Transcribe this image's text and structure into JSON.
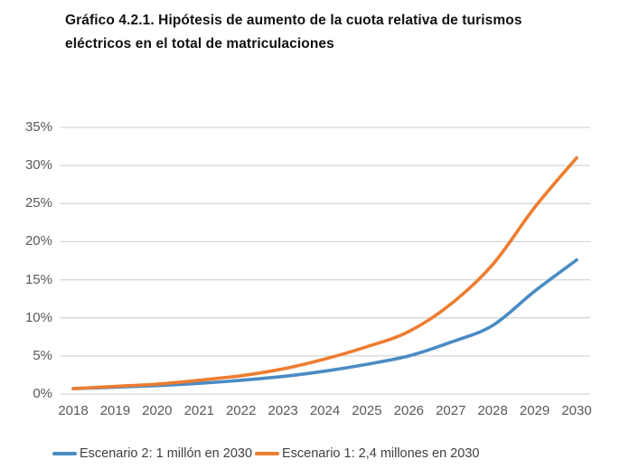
{
  "title": {
    "line1": "Gráfico 4.2.1. Hipótesis de aumento de la cuota relativa de turismos",
    "line2": "eléctricos en el total de matriculaciones"
  },
  "colors": {
    "grid": "#d6d6d6",
    "axis_text": "#595959",
    "legend_text": "#3f3f3f",
    "escenario2_blue": "#4a8bc4",
    "escenario1_orange": "#ed7d31",
    "background": "#ffffff"
  },
  "chart_data": {
    "type": "line",
    "title": "Gráfico 4.2.1. Hipótesis de aumento de la cuota relativa de turismos eléctricos en el total de matriculaciones",
    "x": [
      "2018",
      "2019",
      "2020",
      "2021",
      "2022",
      "2023",
      "2024",
      "2025",
      "2026",
      "2027",
      "2028",
      "2029",
      "2030"
    ],
    "series": [
      {
        "name": "Escenario 2: 1 millón en 2030",
        "color": "#4a8bc4",
        "values": [
          0.7,
          0.9,
          1.1,
          1.4,
          1.8,
          2.3,
          3.0,
          3.9,
          5.0,
          6.8,
          9.0,
          13.5,
          17.6
        ]
      },
      {
        "name": "Escenario 1: 2,4 millones en 2030",
        "color": "#ed7d31",
        "values": [
          0.7,
          1.0,
          1.3,
          1.8,
          2.4,
          3.3,
          4.6,
          6.2,
          8.2,
          11.8,
          17.0,
          24.5,
          31.0
        ]
      }
    ],
    "yticks": [
      {
        "v": 0,
        "label": "0%"
      },
      {
        "v": 5,
        "label": "5%"
      },
      {
        "v": 10,
        "label": "10%"
      },
      {
        "v": 15,
        "label": "15%"
      },
      {
        "v": 20,
        "label": "20%"
      },
      {
        "v": 25,
        "label": "25%"
      },
      {
        "v": 30,
        "label": "30%"
      },
      {
        "v": 35,
        "label": "35%"
      }
    ],
    "ylim": [
      0,
      35
    ],
    "xlabel": "",
    "ylabel": "",
    "grid": "horizontal-only",
    "legend_position": "bottom",
    "line_style": "smooth"
  }
}
